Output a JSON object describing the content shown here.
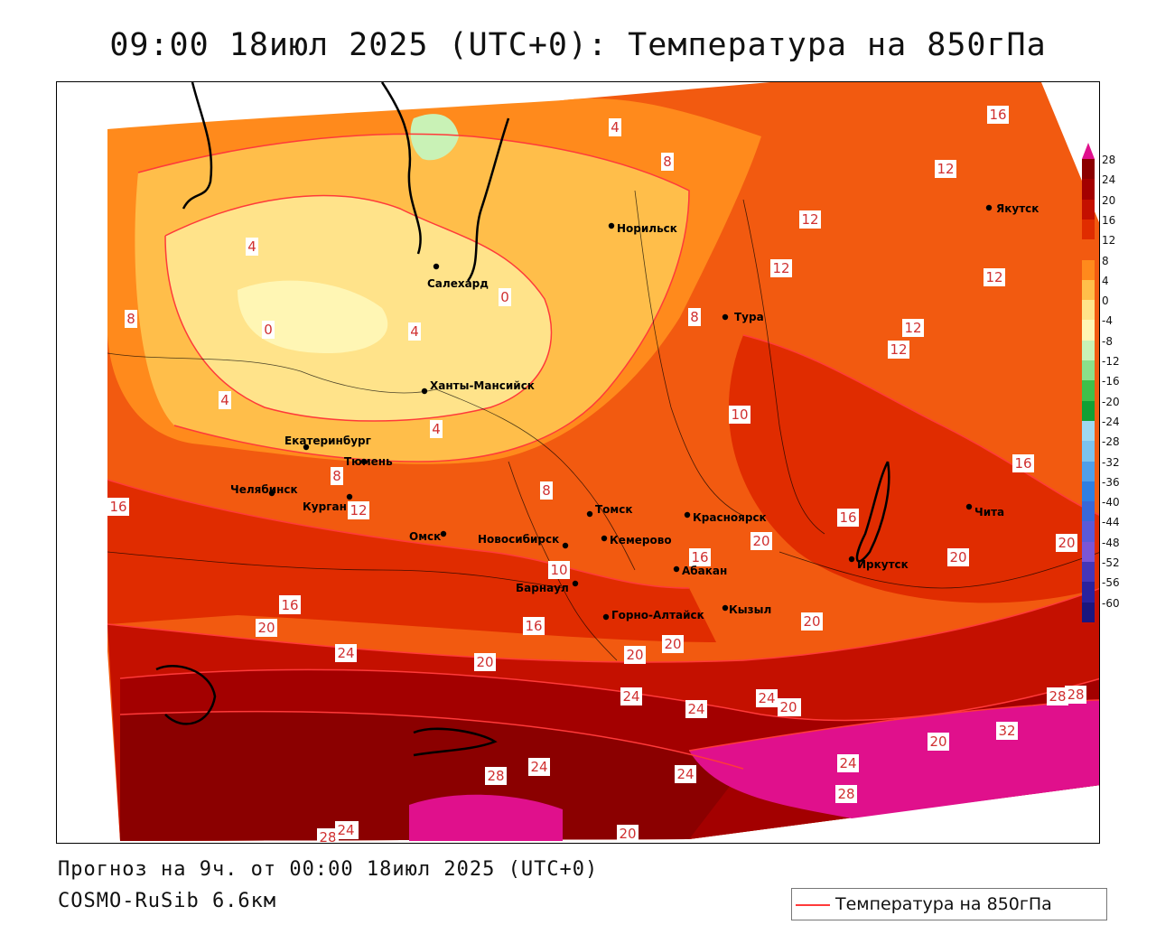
{
  "title": "09:00 18июл 2025 (UTC+0): Температура на 850гПа",
  "footer": {
    "forecast": "Прогноз на 9ч. от 00:00 18июл 2025 (UTC+0)",
    "model": "COSMO-RuSib 6.6км"
  },
  "legend": {
    "label": "Температура на 850гПа",
    "line_color": "#ff3a3a"
  },
  "colorbar": {
    "labels": [
      "28",
      "24",
      "20",
      "16",
      "12",
      "8",
      "4",
      "0",
      "-4",
      "-8",
      "-12",
      "-16",
      "-20",
      "-24",
      "-28",
      "-32",
      "-36",
      "-40",
      "-44",
      "-48",
      "-52",
      "-56",
      "-60"
    ],
    "colors": [
      "#8b0000",
      "#a30000",
      "#c41000",
      "#e02c00",
      "#f25a10",
      "#ff8a1c",
      "#ffbe4a",
      "#ffe38a",
      "#fff6b4",
      "#c9f2b6",
      "#8be08a",
      "#3fc04a",
      "#11a034",
      "#9fd9f0",
      "#7cc3ee",
      "#4f9fea",
      "#2f7fe2",
      "#3868d8",
      "#5a5ad8",
      "#7a56d6",
      "#4436b8",
      "#2a229e",
      "#1a167e"
    ],
    "top_color": "#e0108c"
  },
  "cities": [
    {
      "name": "Якутск"
    },
    {
      "name": "Норильск"
    },
    {
      "name": "Салехард"
    },
    {
      "name": "Тура"
    },
    {
      "name": "Ханты-Мансийск"
    },
    {
      "name": "Екатеринбург"
    },
    {
      "name": "Тюмень"
    },
    {
      "name": "Челябинск"
    },
    {
      "name": "Курган"
    },
    {
      "name": "Томск"
    },
    {
      "name": "Красноярск"
    },
    {
      "name": "Омск"
    },
    {
      "name": "Новосибирск"
    },
    {
      "name": "Кемерово"
    },
    {
      "name": "Абакан"
    },
    {
      "name": "Иркутск"
    },
    {
      "name": "Чита"
    },
    {
      "name": "Барнаул"
    },
    {
      "name": "Кызыл"
    },
    {
      "name": "Горно-Алтайск"
    }
  ],
  "iso_labels": [
    "16",
    "12",
    "4",
    "8",
    "12",
    "12",
    "12",
    "12",
    "12",
    "4",
    "8",
    "0",
    "4",
    "0",
    "8",
    "4",
    "10",
    "10",
    "4",
    "8",
    "16",
    "16",
    "16",
    "20",
    "8",
    "12",
    "16",
    "20",
    "20",
    "16",
    "20",
    "16",
    "16",
    "20",
    "24",
    "20",
    "20",
    "20",
    "20",
    "24",
    "24",
    "24",
    "20",
    "24",
    "28",
    "32",
    "20",
    "24",
    "28",
    "28",
    "24",
    "28",
    "24",
    "20",
    "28",
    "24"
  ]
}
